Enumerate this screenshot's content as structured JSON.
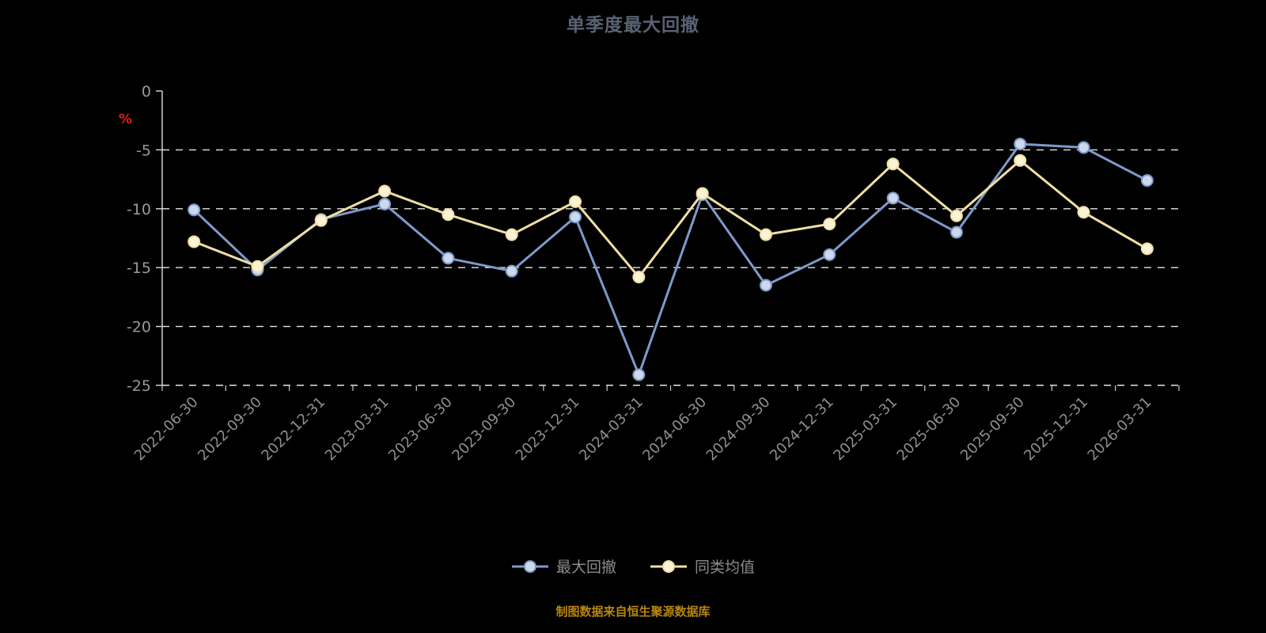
{
  "chart_data": {
    "type": "line",
    "title": "单季度最大回撤",
    "ylabel": "%",
    "ylim": [
      -25,
      0
    ],
    "yticks": [
      0,
      -5,
      -10,
      -15,
      -20,
      -25
    ],
    "grid": true,
    "grid_style": "dashed",
    "legend_position": "bottom",
    "categories": [
      "2022-06-30",
      "2022-09-30",
      "2022-12-31",
      "2023-03-31",
      "2023-06-30",
      "2023-09-30",
      "2023-12-31",
      "2024-03-31",
      "2024-06-30",
      "2024-09-30",
      "2024-12-31",
      "2025-03-31",
      "2025-06-30",
      "2025-09-30",
      "2025-12-31",
      "2026-03-31"
    ],
    "series": [
      {
        "name": "最大回撤",
        "color": "#7e9aca",
        "marker_fill": "#ccd8ec",
        "values": [
          -10.1,
          -15.2,
          -10.9,
          -9.6,
          -14.2,
          -15.3,
          -10.7,
          -24.1,
          -8.8,
          -16.5,
          -13.9,
          -9.1,
          -12.0,
          -4.5,
          -4.8,
          -7.6
        ]
      },
      {
        "name": "同类均值",
        "color": "#f0dfa3",
        "marker_fill": "#faf3d8",
        "values": [
          -12.8,
          -14.9,
          -11.0,
          -8.5,
          -10.5,
          -12.2,
          -9.4,
          -15.8,
          -8.7,
          -12.2,
          -11.3,
          -6.2,
          -10.6,
          -5.9,
          -10.3,
          -13.4
        ]
      }
    ],
    "source_note": "制图数据来自恒生聚源数据库",
    "colors": {
      "background": "#000000",
      "grid": "#e6e6e6",
      "axis": "#cfcfcf",
      "tick_label": "#9a9a9a",
      "x_label": "#8f8f8f",
      "title": "#596273",
      "ylabel": "#e02020",
      "legend_label": "#8c8c8c",
      "source_note": "#b8860b"
    }
  }
}
